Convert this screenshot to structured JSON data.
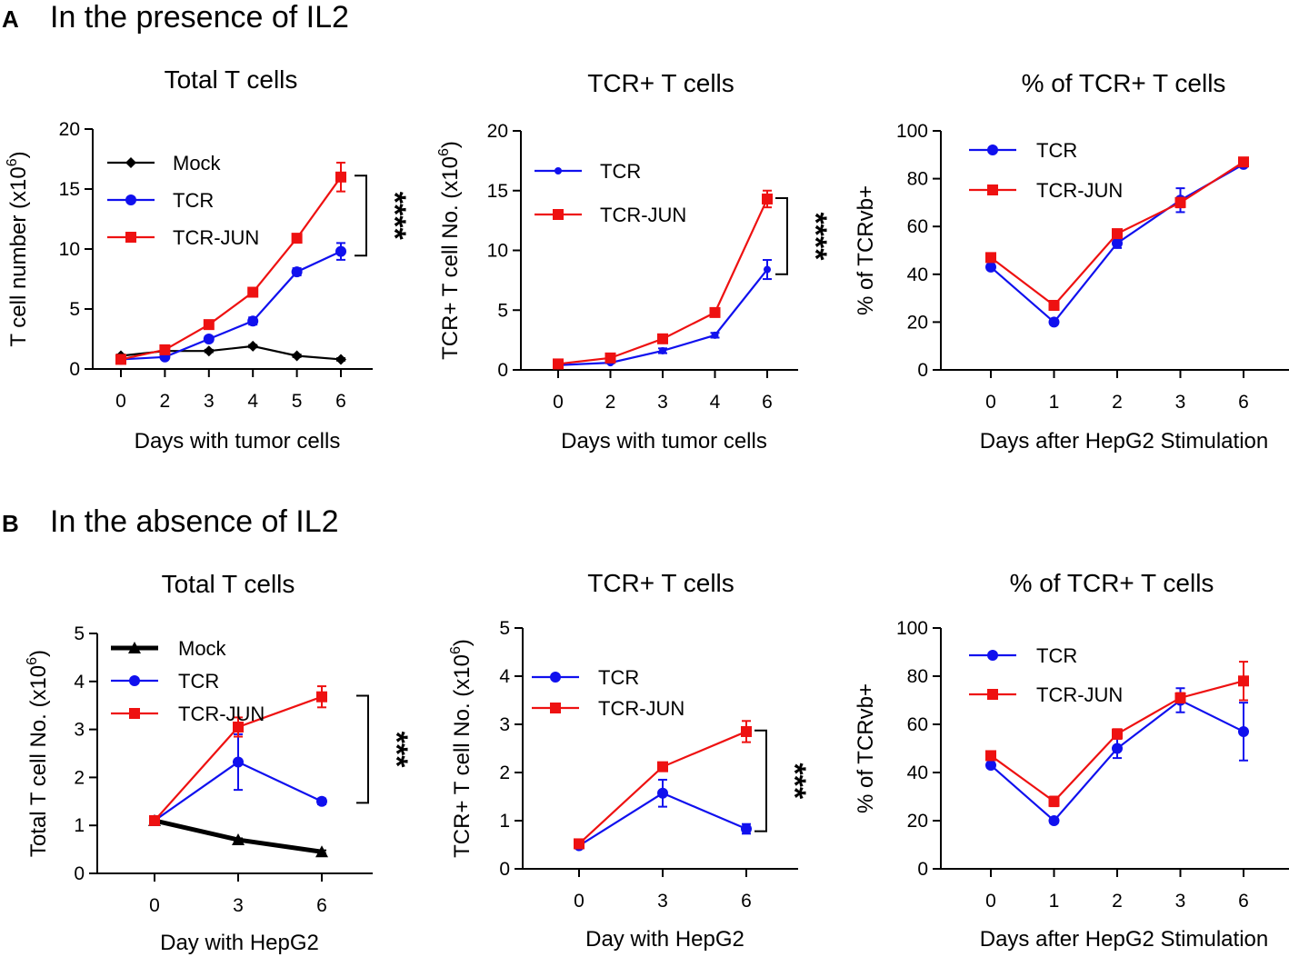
{
  "figure": {
    "panel_a": {
      "letter": "A",
      "heading": "In the presence of IL2"
    },
    "panel_b": {
      "letter": "B",
      "heading": "In the absence of IL2"
    }
  },
  "colors": {
    "mock": "#000000",
    "tcr": "#1010ee",
    "tcr_jun": "#ee1111"
  },
  "chart_data": [
    {
      "id": "a1",
      "type": "line",
      "title": "Total T cells",
      "xlabel": "Days with tumor cells",
      "ylabel": "T cell number (x10",
      "ylabel_sup": "6",
      "ylabel_tail": ")",
      "categories": [
        "0",
        "2",
        "3",
        "4",
        "5",
        "6"
      ],
      "ylim": [
        0,
        20
      ],
      "yticks": [
        0,
        5,
        10,
        15,
        20
      ],
      "series": [
        {
          "name": "Mock",
          "color": "#000000",
          "marker": "diamond",
          "values": [
            1.1,
            1.5,
            1.5,
            1.9,
            1.1,
            0.8
          ],
          "errors": [
            0.1,
            0.1,
            0.1,
            0.1,
            0.1,
            0.1
          ]
        },
        {
          "name": "TCR",
          "color": "#1010ee",
          "marker": "circle",
          "values": [
            0.8,
            1.0,
            2.5,
            4.0,
            8.1,
            9.8
          ],
          "errors": [
            0.1,
            0.1,
            0.2,
            0.3,
            0.3,
            0.7
          ]
        },
        {
          "name": "TCR-JUN",
          "color": "#ee1111",
          "marker": "square",
          "values": [
            0.8,
            1.6,
            3.7,
            6.4,
            10.9,
            16.0
          ],
          "errors": [
            0.1,
            0.1,
            0.2,
            0.3,
            0.3,
            1.2
          ]
        }
      ],
      "significance": "****"
    },
    {
      "id": "a2",
      "type": "line",
      "title": "TCR+ T cells",
      "xlabel": "Days with tumor cells",
      "ylabel": "TCR+ T cell No. (x10",
      "ylabel_sup": "6",
      "ylabel_tail": ")",
      "categories": [
        "0",
        "2",
        "3",
        "4",
        "6"
      ],
      "ylim": [
        0,
        20
      ],
      "yticks": [
        0,
        5,
        10,
        15,
        20
      ],
      "series": [
        {
          "name": "TCR",
          "color": "#1010ee",
          "marker": "dot",
          "values": [
            0.4,
            0.6,
            1.6,
            2.9,
            8.4
          ],
          "errors": [
            0.05,
            0.05,
            0.2,
            0.2,
            0.8
          ]
        },
        {
          "name": "TCR-JUN",
          "color": "#ee1111",
          "marker": "square",
          "values": [
            0.5,
            1.0,
            2.6,
            4.8,
            14.3
          ],
          "errors": [
            0.05,
            0.1,
            0.2,
            0.3,
            0.7
          ]
        }
      ],
      "significance": "****"
    },
    {
      "id": "a3",
      "type": "line",
      "title": "% of TCR+ T cells",
      "xlabel": "Days after HepG2 Stimulation",
      "ylabel": "% of TCRvb+",
      "ylabel_sup": "",
      "ylabel_tail": "",
      "categories": [
        "0",
        "1",
        "2",
        "3",
        "6"
      ],
      "ylim": [
        0,
        100
      ],
      "yticks": [
        0,
        20,
        40,
        60,
        80,
        100
      ],
      "series": [
        {
          "name": "TCR",
          "color": "#1010ee",
          "marker": "circle",
          "values": [
            43,
            20,
            53,
            71,
            86
          ],
          "errors": [
            1,
            1,
            2,
            5,
            1
          ]
        },
        {
          "name": "TCR-JUN",
          "color": "#ee1111",
          "marker": "square",
          "values": [
            47,
            27,
            57,
            70,
            87
          ],
          "errors": [
            1,
            1,
            1,
            2,
            1
          ]
        }
      ],
      "significance": ""
    },
    {
      "id": "b1",
      "type": "line",
      "title": "Total T cells",
      "xlabel": "Day with HepG2",
      "ylabel": "Total T cell No. (x10",
      "ylabel_sup": "6",
      "ylabel_tail": ")",
      "categories": [
        "0",
        "3",
        "6"
      ],
      "ylim": [
        0,
        5
      ],
      "yticks": [
        0,
        1,
        2,
        3,
        4,
        5
      ],
      "series": [
        {
          "name": "Mock",
          "color": "#000000",
          "marker": "triangle",
          "thick": true,
          "values": [
            1.1,
            0.7,
            0.45
          ],
          "errors": [
            0.03,
            0.03,
            0.03
          ]
        },
        {
          "name": "TCR",
          "color": "#1010ee",
          "marker": "circle",
          "values": [
            1.1,
            2.32,
            1.5
          ],
          "errors": [
            0.05,
            0.58,
            0.06
          ]
        },
        {
          "name": "TCR-JUN",
          "color": "#ee1111",
          "marker": "square",
          "values": [
            1.1,
            3.05,
            3.68
          ],
          "errors": [
            0.05,
            0.2,
            0.22
          ]
        }
      ],
      "significance": "***"
    },
    {
      "id": "b2",
      "type": "line",
      "title": "TCR+ T cells",
      "xlabel": "Day with HepG2",
      "ylabel": "TCR+ T cell No. (x10",
      "ylabel_sup": "6",
      "ylabel_tail": ")",
      "categories": [
        "0",
        "3",
        "6"
      ],
      "ylim": [
        0,
        5
      ],
      "yticks": [
        0,
        1,
        2,
        3,
        4,
        5
      ],
      "series": [
        {
          "name": "TCR",
          "color": "#1010ee",
          "marker": "circle",
          "values": [
            0.48,
            1.57,
            0.83
          ],
          "errors": [
            0.04,
            0.28,
            0.1
          ]
        },
        {
          "name": "TCR-JUN",
          "color": "#ee1111",
          "marker": "square",
          "values": [
            0.52,
            2.12,
            2.85
          ],
          "errors": [
            0.04,
            0.07,
            0.22
          ]
        }
      ],
      "significance": "***"
    },
    {
      "id": "b3",
      "type": "line",
      "title": "% of TCR+ T cells",
      "xlabel": "Days after HepG2 Stimulation",
      "ylabel": "% of TCRvb+",
      "ylabel_sup": "",
      "ylabel_tail": "",
      "categories": [
        "0",
        "1",
        "2",
        "3",
        "6"
      ],
      "ylim": [
        0,
        100
      ],
      "yticks": [
        0,
        20,
        40,
        60,
        80,
        100
      ],
      "series": [
        {
          "name": "TCR",
          "color": "#1010ee",
          "marker": "circle",
          "values": [
            43,
            20,
            50,
            70,
            57
          ],
          "errors": [
            1,
            1,
            4,
            5,
            12
          ]
        },
        {
          "name": "TCR-JUN",
          "color": "#ee1111",
          "marker": "square",
          "values": [
            47,
            28,
            56,
            71,
            78
          ],
          "errors": [
            1,
            2,
            2,
            2,
            8
          ]
        }
      ],
      "significance": ""
    }
  ]
}
